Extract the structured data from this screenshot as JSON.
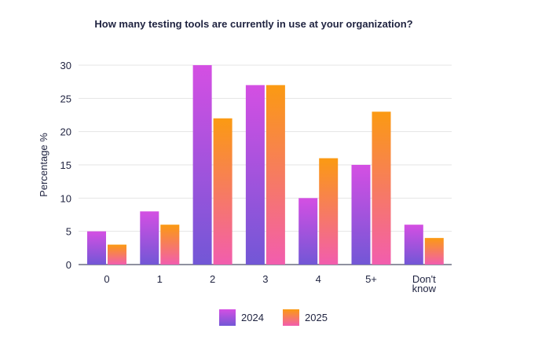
{
  "colors": {
    "series_2024_top": "#d44fe3",
    "series_2024_bottom": "#7257d6",
    "series_2025_top": "#fb9a12",
    "series_2025_bottom": "#f25dae",
    "grid": "#e4e4e4",
    "text": "#1f2340"
  },
  "chart_data": {
    "type": "bar",
    "title": "How many testing tools are currently in use at your organization?",
    "xlabel": "",
    "ylabel": "Percentage %",
    "ylim": [
      0,
      30
    ],
    "yticks": [
      "0",
      "5",
      "10",
      "15",
      "20",
      "25",
      "30"
    ],
    "categories": [
      "0",
      "1",
      "2",
      "3",
      "4",
      "5+",
      "Don't know"
    ],
    "series": [
      {
        "name": "2024",
        "values": [
          5,
          8,
          30,
          27,
          10,
          15,
          6
        ]
      },
      {
        "name": "2025",
        "values": [
          3,
          6,
          22,
          27,
          16,
          23,
          4
        ]
      }
    ],
    "grid": true,
    "legend_position": "bottom-center"
  }
}
